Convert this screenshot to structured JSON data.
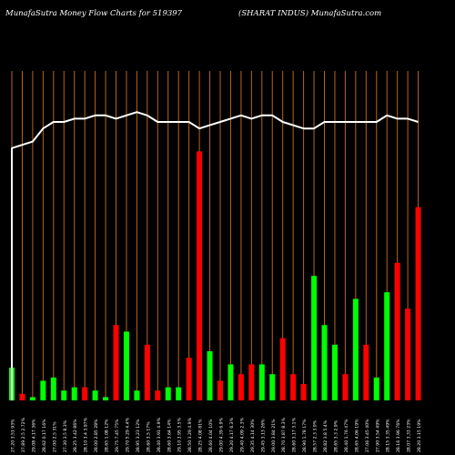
{
  "header": {
    "title_left": "MunafaSutra  Money Flow  Charts for 519397",
    "title_right": "(SHARAT INDUS) MunafaSutra.com"
  },
  "colors": {
    "background": "#000000",
    "grid": "#b8651f",
    "up": "#00ff00",
    "down": "#ff0000",
    "line": "#ffffff"
  },
  "chart_data": {
    "type": "bar",
    "title": "MunafaSutra  Money Flow  Charts for 519397",
    "subtitle": "(SHARAT INDUS) MunafaSutra.com",
    "ylim": [
      0,
      100
    ],
    "grid": "vertical",
    "categories": [
      "27.20 3.51 93%",
      "27.89 2.5 2.72%",
      "29.08 4.17 36%",
      "28.62 0.17 16%",
      "27.00 2.5 31%",
      "27.30 3.5 8.3%",
      "28.25 3.42 86%",
      "28.10 3.4 3.97%",
      "28.00 2.85 28%",
      "28.65 1.08 12%",
      "29.75 7.45 75%",
      "29.70 5.29 4.4%",
      "28.95 3.23 12%",
      "28.60 3.5 17%",
      "28.40 3.91 4.9%",
      "28.60 3.64 14%",
      "29.10 3.95 3.5%",
      "28.50 3.29 4.9%",
      "28.25 4.08 81%",
      "28.60 4.04 10%",
      "29.00 4.39 6.9%",
      "29.20 4.17 6.3%",
      "29.40 4.09 2.3%",
      "29.35 4.14 30%",
      "29.45 3.13 26%",
      "29.00 3.84 21%",
      "28.70 3.87 8.3%",
      "28.60 3.17 3.1%",
      "28.90 1.78 17%",
      "28.57 2.3 3.0%",
      "28.82 3.8 5.4%",
      "28.65 3.3 2.9%",
      "28.40 1.76 47%",
      "28.65 4.06 19%",
      "27.06 3.45 40%",
      "27.90 3.54 49%",
      "28.15 3.35 49%",
      "28.16 3.96 76%",
      "28.07 3.31 23%",
      "28.20 3.15 19%"
    ],
    "series": [
      {
        "values": [
          10,
          2,
          1,
          6,
          7,
          3,
          4,
          4,
          3,
          1,
          23,
          21,
          3,
          17,
          3,
          4,
          4,
          13,
          76,
          15,
          6,
          11,
          8,
          11,
          11,
          8,
          19,
          8,
          5,
          38,
          23,
          17,
          8,
          31,
          17,
          7,
          33,
          42,
          28,
          59
        ],
        "directions": [
          "up",
          "down",
          "up",
          "up",
          "up",
          "up",
          "up",
          "down",
          "up",
          "up",
          "down",
          "up",
          "up",
          "down",
          "down",
          "up",
          "up",
          "down",
          "down",
          "up",
          "down",
          "up",
          "down",
          "down",
          "up",
          "up",
          "down",
          "down",
          "down",
          "up",
          "up",
          "up",
          "down",
          "up",
          "down",
          "up",
          "up",
          "down",
          "down",
          "down"
        ]
      },
      {
        "values": [
          77,
          78,
          79,
          83,
          85,
          85,
          86,
          86,
          87,
          87,
          86,
          87,
          88,
          87,
          85,
          85,
          85,
          85,
          83,
          84,
          85,
          86,
          87,
          86,
          87,
          87,
          85,
          84,
          83,
          83,
          85,
          85,
          85,
          85,
          85,
          85,
          87,
          86,
          86,
          85
        ]
      }
    ]
  }
}
